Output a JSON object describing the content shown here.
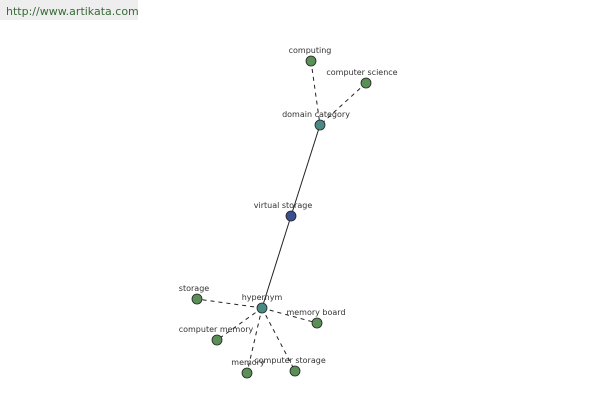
{
  "header": {
    "url": "http://www.artikata.com"
  },
  "nodes": [
    {
      "label": "computing"
    },
    {
      "label": "computer science"
    },
    {
      "label": "domain category"
    },
    {
      "label": "virtual storage"
    },
    {
      "label": "hypernym"
    },
    {
      "label": "storage"
    },
    {
      "label": "memory board"
    },
    {
      "label": "computer memory"
    },
    {
      "label": "memory"
    },
    {
      "label": "computer storage"
    }
  ]
}
